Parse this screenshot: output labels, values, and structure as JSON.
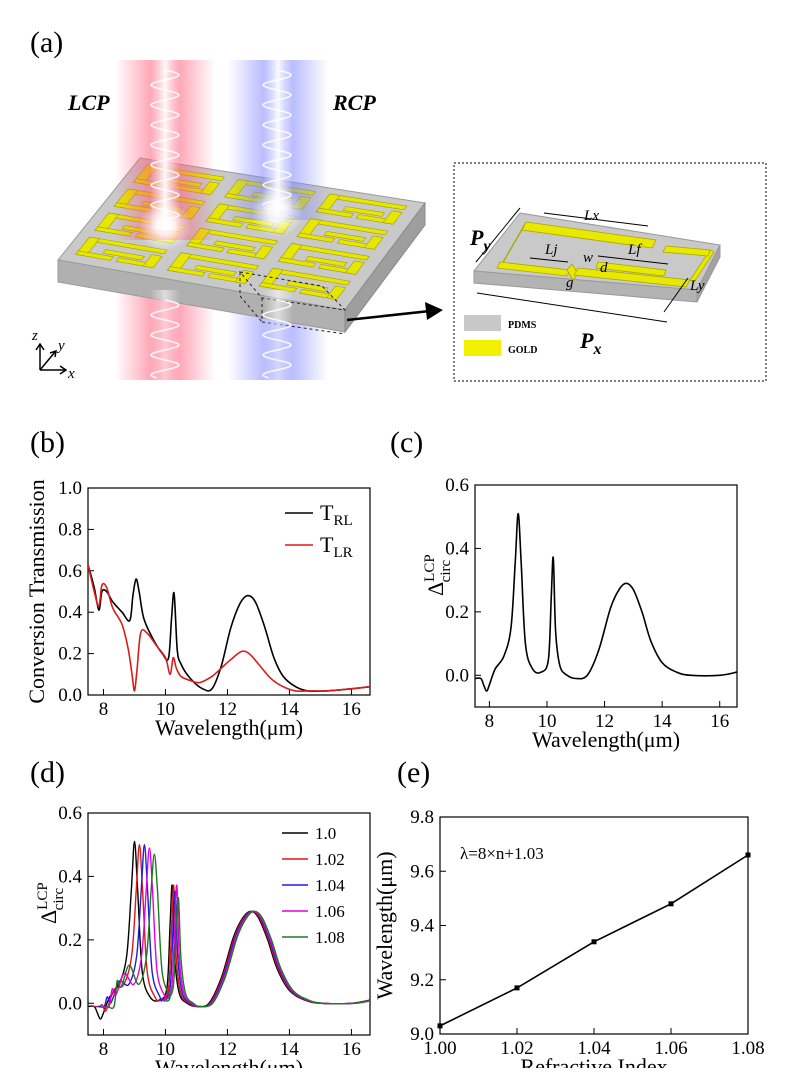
{
  "panel_a": {
    "label": "(a)",
    "beam_left": "LCP",
    "beam_right": "RCP",
    "axes_labels": {
      "z": "z",
      "y": "y",
      "x": "x"
    },
    "beam_colors": {
      "lcp": "#ff5a78",
      "rcp": "#7d82ff"
    },
    "inset": {
      "dims": {
        "px": "P",
        "px_sub": "x",
        "py": "P",
        "py_sub": "y",
        "lx": "Lx",
        "ly": "Ly",
        "lj": "Lj",
        "lf": "Lf",
        "w": "w",
        "d": "d",
        "g": "g"
      },
      "legend": [
        {
          "label": "PDMS",
          "color": "#c8c8c8"
        },
        {
          "label": "GOLD",
          "color": "#f2f200"
        }
      ]
    }
  },
  "chart_data": [
    {
      "id": "b",
      "panel_label": "(b)",
      "type": "line",
      "xlabel": "Wavelength(μm)",
      "ylabel": "Conversion Transmission",
      "xlim": [
        7.5,
        16.6
      ],
      "ylim": [
        0.0,
        1.0
      ],
      "xticks": [
        8,
        10,
        12,
        14,
        16
      ],
      "yticks": [
        0.0,
        0.2,
        0.4,
        0.6,
        0.8,
        1.0
      ],
      "tick_labels_y": [
        "0.0",
        "0.2",
        "0.4",
        "0.6",
        "0.8",
        "1.0"
      ],
      "legend": "top-right",
      "series": [
        {
          "name": "T",
          "sub": "RL",
          "color": "#000000",
          "x": [
            7.5,
            7.7,
            7.85,
            7.95,
            8.1,
            8.3,
            8.6,
            8.85,
            8.95,
            9.05,
            9.15,
            9.3,
            9.6,
            9.9,
            10.1,
            10.2,
            10.28,
            10.38,
            10.5,
            10.8,
            11.2,
            11.5,
            11.8,
            12.1,
            12.4,
            12.65,
            12.9,
            13.2,
            13.5,
            13.8,
            14.2,
            14.6,
            15.2,
            16.0,
            16.6
          ],
          "y": [
            0.63,
            0.52,
            0.41,
            0.5,
            0.5,
            0.45,
            0.4,
            0.36,
            0.48,
            0.56,
            0.5,
            0.37,
            0.27,
            0.2,
            0.18,
            0.38,
            0.49,
            0.22,
            0.15,
            0.08,
            0.03,
            0.03,
            0.14,
            0.32,
            0.44,
            0.48,
            0.45,
            0.33,
            0.18,
            0.09,
            0.04,
            0.02,
            0.02,
            0.03,
            0.04
          ]
        },
        {
          "name": "T",
          "sub": "LR",
          "color": "#dd1a1a",
          "x": [
            7.5,
            7.7,
            7.85,
            7.95,
            8.1,
            8.3,
            8.6,
            8.8,
            8.92,
            9.0,
            9.08,
            9.2,
            9.4,
            9.7,
            10.0,
            10.15,
            10.25,
            10.35,
            10.5,
            10.8,
            11.1,
            11.5,
            11.8,
            12.1,
            12.45,
            12.7,
            13.0,
            13.4,
            13.8,
            14.2,
            14.6,
            15.2,
            16.0,
            16.6
          ],
          "y": [
            0.63,
            0.5,
            0.43,
            0.53,
            0.52,
            0.42,
            0.34,
            0.22,
            0.1,
            0.02,
            0.12,
            0.3,
            0.3,
            0.24,
            0.18,
            0.1,
            0.18,
            0.13,
            0.09,
            0.07,
            0.06,
            0.09,
            0.13,
            0.17,
            0.21,
            0.2,
            0.15,
            0.08,
            0.04,
            0.02,
            0.02,
            0.02,
            0.03,
            0.04
          ]
        }
      ]
    },
    {
      "id": "c",
      "panel_label": "(c)",
      "type": "line",
      "xlabel": "Wavelength(μm)",
      "ylabel_main": "Δ",
      "ylabel_sup": "LCP",
      "ylabel_sub": "circ",
      "xlim": [
        7.5,
        16.6
      ],
      "ylim": [
        -0.1,
        0.6
      ],
      "xticks": [
        8,
        10,
        12,
        14,
        16
      ],
      "yticks": [
        0.0,
        0.2,
        0.4,
        0.6
      ],
      "tick_labels_y": [
        "0.0",
        "0.2",
        "0.4",
        "0.6"
      ],
      "series": [
        {
          "color": "#000000",
          "x": [
            7.5,
            7.7,
            7.8,
            7.9,
            8.0,
            8.2,
            8.5,
            8.75,
            8.9,
            9.0,
            9.1,
            9.25,
            9.5,
            9.8,
            10.05,
            10.15,
            10.22,
            10.3,
            10.45,
            10.7,
            11.0,
            11.4,
            11.8,
            12.2,
            12.5,
            12.75,
            13.0,
            13.3,
            13.6,
            14.0,
            14.5,
            15.0,
            16.0,
            16.6
          ],
          "y": [
            -0.01,
            -0.01,
            -0.03,
            -0.05,
            -0.03,
            0.02,
            0.06,
            0.15,
            0.36,
            0.51,
            0.36,
            0.1,
            0.02,
            0.01,
            0.05,
            0.25,
            0.37,
            0.14,
            0.03,
            0.0,
            -0.01,
            0.0,
            0.08,
            0.21,
            0.27,
            0.29,
            0.27,
            0.2,
            0.11,
            0.04,
            0.01,
            0.0,
            0.0,
            0.01
          ]
        }
      ]
    },
    {
      "id": "d",
      "panel_label": "(d)",
      "type": "line",
      "xlabel": "Wavelength(μm)",
      "ylabel_main": "Δ",
      "ylabel_sup": "LCP",
      "ylabel_sub": "circ",
      "xlim": [
        7.5,
        16.6
      ],
      "ylim": [
        -0.1,
        0.6
      ],
      "xticks": [
        8,
        10,
        12,
        14,
        16
      ],
      "yticks": [
        0.0,
        0.2,
        0.4,
        0.6
      ],
      "tick_labels_y": [
        "0.0",
        "0.2",
        "0.4",
        "0.6"
      ],
      "legend": "top-right",
      "series": [
        {
          "name": "1.0",
          "color": "#000000",
          "shift1": 0.0,
          "shift2": 0.0,
          "shift3": 0.0,
          "peak1": 0.51,
          "peak2": 0.37
        },
        {
          "name": "1.02",
          "color": "#e01515",
          "shift1": 0.16,
          "shift2": 0.05,
          "shift3": 0.03,
          "peak1": 0.5,
          "peak2": 0.37
        },
        {
          "name": "1.04",
          "color": "#1f1fd6",
          "shift1": 0.32,
          "shift2": 0.1,
          "shift3": 0.06,
          "peak1": 0.5,
          "peak2": 0.35
        },
        {
          "name": "1.06",
          "color": "#e000e0",
          "shift1": 0.48,
          "shift2": 0.15,
          "shift3": 0.09,
          "peak1": 0.49,
          "peak2": 0.37
        },
        {
          "name": "1.08",
          "color": "#1f7a1f",
          "shift1": 0.64,
          "shift2": 0.2,
          "shift3": 0.12,
          "peak1": 0.47,
          "peak2": 0.33
        }
      ]
    },
    {
      "id": "e",
      "panel_label": "(e)",
      "type": "line",
      "xlabel": "Refractive Index",
      "ylabel": "Wavelength(μm)",
      "xlim": [
        1.0,
        1.08
      ],
      "ylim": [
        9.0,
        9.8
      ],
      "xticks": [
        1.0,
        1.02,
        1.04,
        1.06,
        1.08
      ],
      "tick_labels_x": [
        "1.00",
        "1.02",
        "1.04",
        "1.06",
        "1.08"
      ],
      "yticks": [
        9.0,
        9.2,
        9.4,
        9.6,
        9.8
      ],
      "tick_labels_y": [
        "9.0",
        "9.2",
        "9.4",
        "9.6",
        "9.8"
      ],
      "annotation": "λ=8×n+1.03",
      "series": [
        {
          "color": "#000000",
          "x": [
            1.0,
            1.02,
            1.04,
            1.06,
            1.08
          ],
          "y": [
            9.03,
            9.17,
            9.34,
            9.48,
            9.66
          ]
        }
      ]
    }
  ]
}
